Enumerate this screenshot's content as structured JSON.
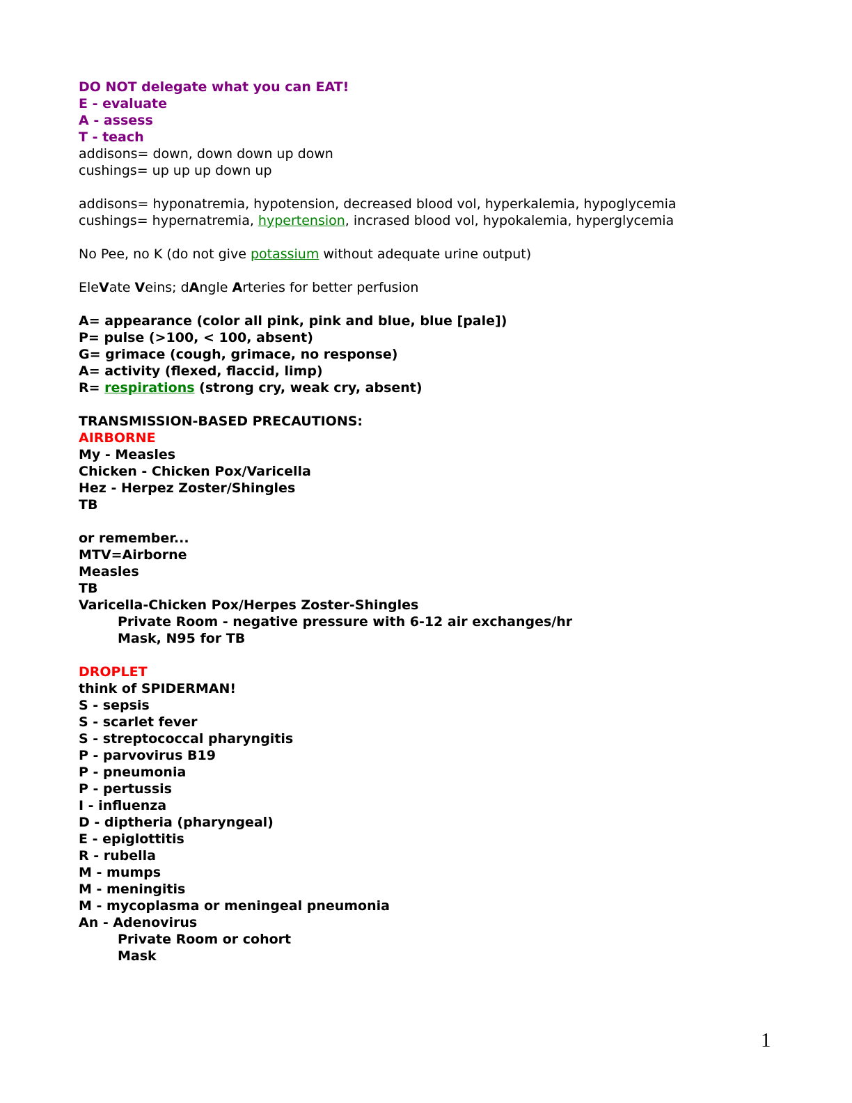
{
  "colors": {
    "purple": "#800080",
    "red": "#ff0000",
    "green": "#008000",
    "black": "#000000"
  },
  "page": {
    "page_number": "1"
  },
  "document": {
    "lines": [
      {
        "segments": [
          {
            "text": "DO NOT delegate what you can EAT!",
            "bold": true,
            "color": "purple"
          }
        ]
      },
      {
        "segments": [
          {
            "text": "E - evaluate",
            "bold": true,
            "color": "purple"
          }
        ]
      },
      {
        "segments": [
          {
            "text": "A - assess",
            "bold": true,
            "color": "purple"
          }
        ]
      },
      {
        "segments": [
          {
            "text": "T - teach",
            "bold": true,
            "color": "purple"
          }
        ]
      },
      {
        "segments": [
          {
            "text": "addisons= down, down down up down"
          }
        ]
      },
      {
        "segments": [
          {
            "text": "cushings= up up up down up"
          }
        ]
      },
      {
        "segments": []
      },
      {
        "segments": [
          {
            "text": "addisons= hyponatremia, hypotension, decreased blood vol, hyperkalemia, hypoglycemia"
          }
        ]
      },
      {
        "segments": [
          {
            "text": "cushings= hypernatremia, "
          },
          {
            "text": "hypertension",
            "link": true,
            "name": "hypertension-link"
          },
          {
            "text": ", incrased blood vol, hypokalemia, hyperglycemia"
          }
        ]
      },
      {
        "segments": []
      },
      {
        "segments": [
          {
            "text": "No Pee, no K (do not give "
          },
          {
            "text": "potassium",
            "link": true,
            "name": "potassium-link"
          },
          {
            "text": " without adequate urine output)"
          }
        ]
      },
      {
        "segments": []
      },
      {
        "segments": [
          {
            "text": "Ele"
          },
          {
            "text": "V",
            "bold": true
          },
          {
            "text": "ate "
          },
          {
            "text": "V",
            "bold": true
          },
          {
            "text": "eins; d"
          },
          {
            "text": "A",
            "bold": true
          },
          {
            "text": "ngle "
          },
          {
            "text": "A",
            "bold": true
          },
          {
            "text": "rteries for better perfusion"
          }
        ]
      },
      {
        "segments": []
      },
      {
        "segments": [
          {
            "text": "A= appearance (color all pink, pink and blue, blue [pale])",
            "bold": true
          }
        ]
      },
      {
        "segments": [
          {
            "text": "P= pulse (>100, < 100, absent)",
            "bold": true
          }
        ]
      },
      {
        "segments": [
          {
            "text": "G= grimace (cough, grimace, no response)",
            "bold": true
          }
        ]
      },
      {
        "segments": [
          {
            "text": "A= activity (flexed, flaccid, limp)",
            "bold": true
          }
        ]
      },
      {
        "segments": [
          {
            "text": "R= ",
            "bold": true
          },
          {
            "text": "respirations",
            "bold": true,
            "link": true,
            "name": "respirations-link"
          },
          {
            "text": " (strong cry, weak cry, absent)",
            "bold": true
          }
        ]
      },
      {
        "segments": []
      },
      {
        "segments": [
          {
            "text": "TRANSMISSION-BASED PRECAUTIONS:",
            "bold": true
          }
        ]
      },
      {
        "segments": [
          {
            "text": "AIRBORNE",
            "bold": true,
            "color": "red"
          }
        ]
      },
      {
        "segments": [
          {
            "text": "My - Measles",
            "bold": true
          }
        ]
      },
      {
        "segments": [
          {
            "text": "Chicken - Chicken Pox/Varicella",
            "bold": true
          }
        ]
      },
      {
        "segments": [
          {
            "text": "Hez - Herpez Zoster/Shingles",
            "bold": true
          }
        ]
      },
      {
        "segments": [
          {
            "text": "TB",
            "bold": true
          }
        ]
      },
      {
        "segments": []
      },
      {
        "segments": [
          {
            "text": "or remember...",
            "bold": true
          }
        ]
      },
      {
        "segments": [
          {
            "text": "MTV=Airborne",
            "bold": true
          }
        ]
      },
      {
        "segments": [
          {
            "text": "Measles",
            "bold": true
          }
        ]
      },
      {
        "segments": [
          {
            "text": "TB",
            "bold": true
          }
        ]
      },
      {
        "segments": [
          {
            "text": "Varicella-Chicken Pox/Herpes Zoster-Shingles",
            "bold": true
          }
        ]
      },
      {
        "indent": true,
        "segments": [
          {
            "text": "Private Room - negative pressure with 6-12 air exchanges/hr",
            "bold": true
          }
        ]
      },
      {
        "indent": true,
        "segments": [
          {
            "text": "Mask, N95 for TB",
            "bold": true
          }
        ]
      },
      {
        "segments": []
      },
      {
        "segments": [
          {
            "text": "DROPLET",
            "bold": true,
            "color": "red"
          }
        ]
      },
      {
        "segments": [
          {
            "text": "think of SPIDERMAN!",
            "bold": true
          }
        ]
      },
      {
        "segments": [
          {
            "text": "S - sepsis",
            "bold": true
          }
        ]
      },
      {
        "segments": [
          {
            "text": "S - scarlet fever",
            "bold": true
          }
        ]
      },
      {
        "segments": [
          {
            "text": "S - streptococcal pharyngitis",
            "bold": true
          }
        ]
      },
      {
        "segments": [
          {
            "text": "P - parvovirus B19",
            "bold": true
          }
        ]
      },
      {
        "segments": [
          {
            "text": "P - pneumonia",
            "bold": true
          }
        ]
      },
      {
        "segments": [
          {
            "text": "P - pertussis",
            "bold": true
          }
        ]
      },
      {
        "segments": [
          {
            "text": "I - influenza",
            "bold": true
          }
        ]
      },
      {
        "segments": [
          {
            "text": "D - diptheria (pharyngeal)",
            "bold": true
          }
        ]
      },
      {
        "segments": [
          {
            "text": "E - epiglottitis",
            "bold": true
          }
        ]
      },
      {
        "segments": [
          {
            "text": "R - rubella",
            "bold": true
          }
        ]
      },
      {
        "segments": [
          {
            "text": "M - mumps",
            "bold": true
          }
        ]
      },
      {
        "segments": [
          {
            "text": "M - meningitis",
            "bold": true
          }
        ]
      },
      {
        "segments": [
          {
            "text": "M - mycoplasma or meningeal pneumonia",
            "bold": true
          }
        ]
      },
      {
        "segments": [
          {
            "text": "An - Adenovirus",
            "bold": true
          }
        ]
      },
      {
        "indent": true,
        "segments": [
          {
            "text": "Private Room or cohort",
            "bold": true
          }
        ]
      },
      {
        "indent": true,
        "segments": [
          {
            "text": "Mask",
            "bold": true
          }
        ]
      }
    ]
  }
}
